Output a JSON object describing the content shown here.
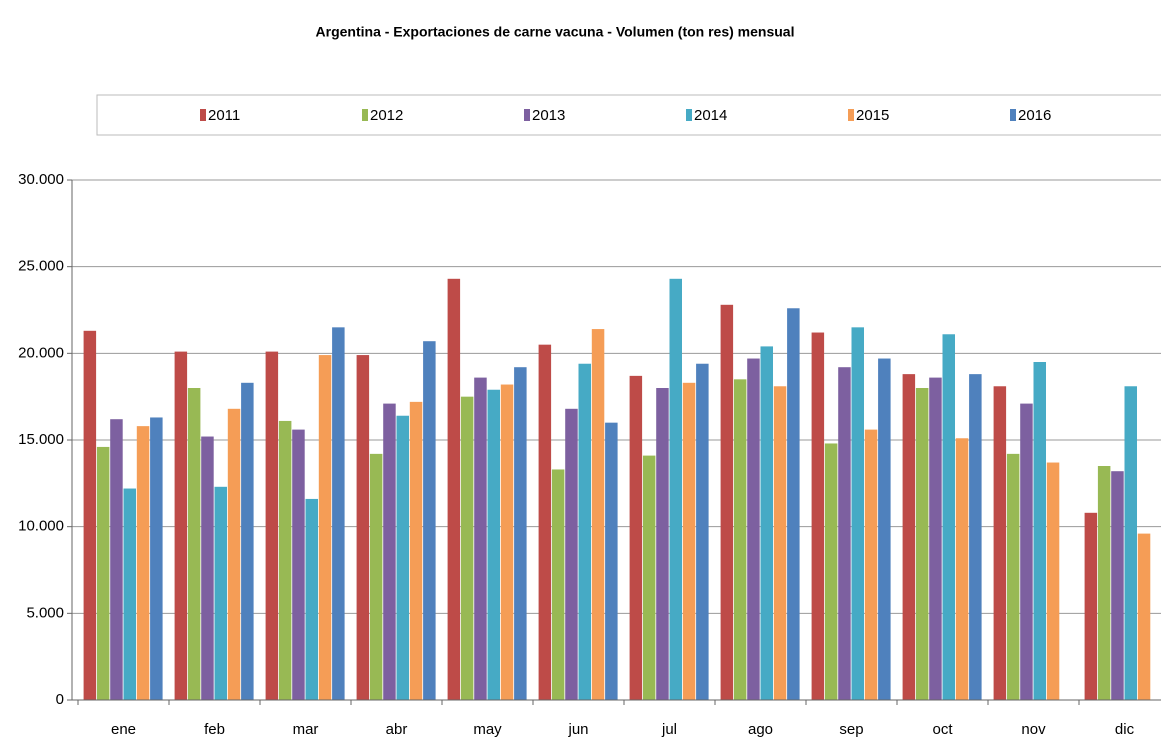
{
  "chart_data": {
    "type": "bar",
    "title": "Argentina - Exportaciones de carne vacuna - Volumen (ton res) mensual",
    "categories": [
      "ene",
      "feb",
      "mar",
      "abr",
      "may",
      "jun",
      "jul",
      "ago",
      "sep",
      "oct",
      "nov",
      "dic"
    ],
    "series": [
      {
        "name": "2011",
        "color": "#be4b48",
        "values": [
          21300,
          20100,
          20100,
          19900,
          24300,
          20500,
          18700,
          22800,
          21200,
          18800,
          18100,
          10800
        ]
      },
      {
        "name": "2012",
        "color": "#98b954",
        "values": [
          14600,
          18000,
          16100,
          14200,
          17500,
          13300,
          14100,
          18500,
          14800,
          18000,
          14200,
          13500
        ]
      },
      {
        "name": "2013",
        "color": "#7d60a0",
        "values": [
          16200,
          15200,
          15600,
          17100,
          18600,
          16800,
          18000,
          19700,
          19200,
          18600,
          17100,
          13200
        ]
      },
      {
        "name": "2014",
        "color": "#46aac5",
        "values": [
          12200,
          12300,
          11600,
          16400,
          17900,
          19400,
          24300,
          20400,
          21500,
          21100,
          19500,
          18100
        ]
      },
      {
        "name": "2015",
        "color": "#f59d56",
        "values": [
          15800,
          16800,
          19900,
          17200,
          18200,
          21400,
          18300,
          18100,
          15600,
          15100,
          13700,
          9600
        ]
      },
      {
        "name": "2016",
        "color": "#4f81bd",
        "values": [
          16300,
          18300,
          21500,
          20700,
          19200,
          16000,
          19400,
          22600,
          19700,
          18800,
          null,
          null
        ]
      }
    ],
    "ylim": [
      0,
      30000
    ],
    "yticks": [
      0,
      {
        "value": 5000,
        "label": "5.000"
      },
      {
        "value": 10000,
        "label": "10.000"
      },
      {
        "value": 15000,
        "label": "15.000"
      },
      {
        "value": 20000,
        "label": "20.000"
      },
      {
        "value": 25000,
        "label": "25.000"
      },
      {
        "value": 30000,
        "label": "30.000"
      }
    ],
    "grid": true,
    "legend": "top"
  }
}
